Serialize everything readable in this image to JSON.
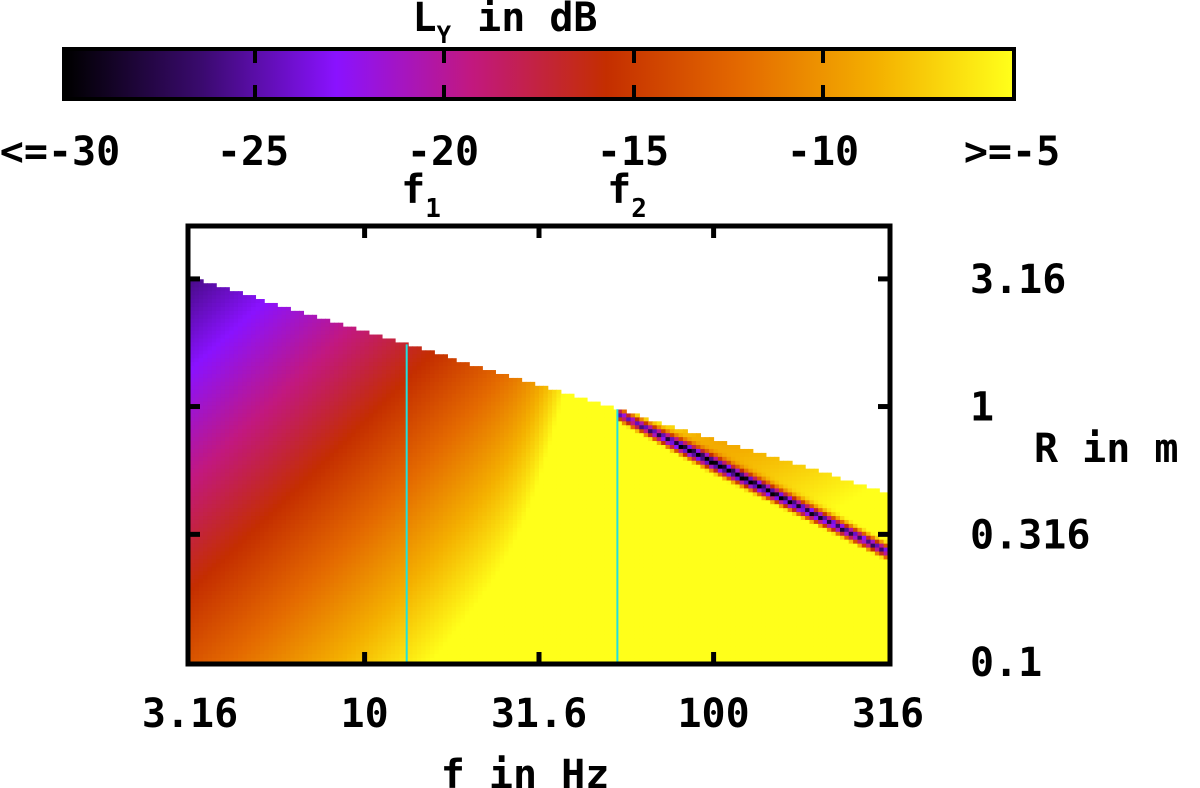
{
  "chart_data": {
    "type": "heatmap",
    "colorbar": {
      "title_main": "L",
      "title_sub": "Y",
      "title_rest": " in dB",
      "tick_labels": [
        "<=-30",
        "-25",
        "-20",
        "-15",
        "-10",
        ">=-5"
      ],
      "tick_values": [
        -30,
        -25,
        -20,
        -15,
        -10,
        -5
      ],
      "colormap_stops": [
        "#000000",
        "#3a0a6e",
        "#8a12ff",
        "#c2187f",
        "#c42e00",
        "#e46a00",
        "#f4b000",
        "#ffff1a"
      ]
    },
    "x_axis": {
      "label": "f in Hz",
      "scale": "log",
      "range": [
        3.16,
        316
      ],
      "tick_values": [
        3.16,
        10,
        31.6,
        100,
        316
      ],
      "tick_labels": [
        "3.16",
        "10",
        "31.6",
        "100",
        "316"
      ]
    },
    "y_axis": {
      "label": "R in m",
      "scale": "log",
      "range": [
        0.1,
        5.0
      ],
      "tick_values": [
        3.16,
        1,
        0.316,
        0.1
      ],
      "tick_labels": [
        "3.16",
        "1",
        "0.316",
        "0.1"
      ]
    },
    "markers": [
      {
        "main": "f",
        "sub": "1",
        "x": 13.2
      },
      {
        "main": "f",
        "sub": "2",
        "x": 53
      }
    ],
    "marker_color": "#20e0e0",
    "valid_region_boundary": {
      "x": [
        3.16,
        316
      ],
      "R": [
        3.2,
        0.46
      ]
    }
  }
}
